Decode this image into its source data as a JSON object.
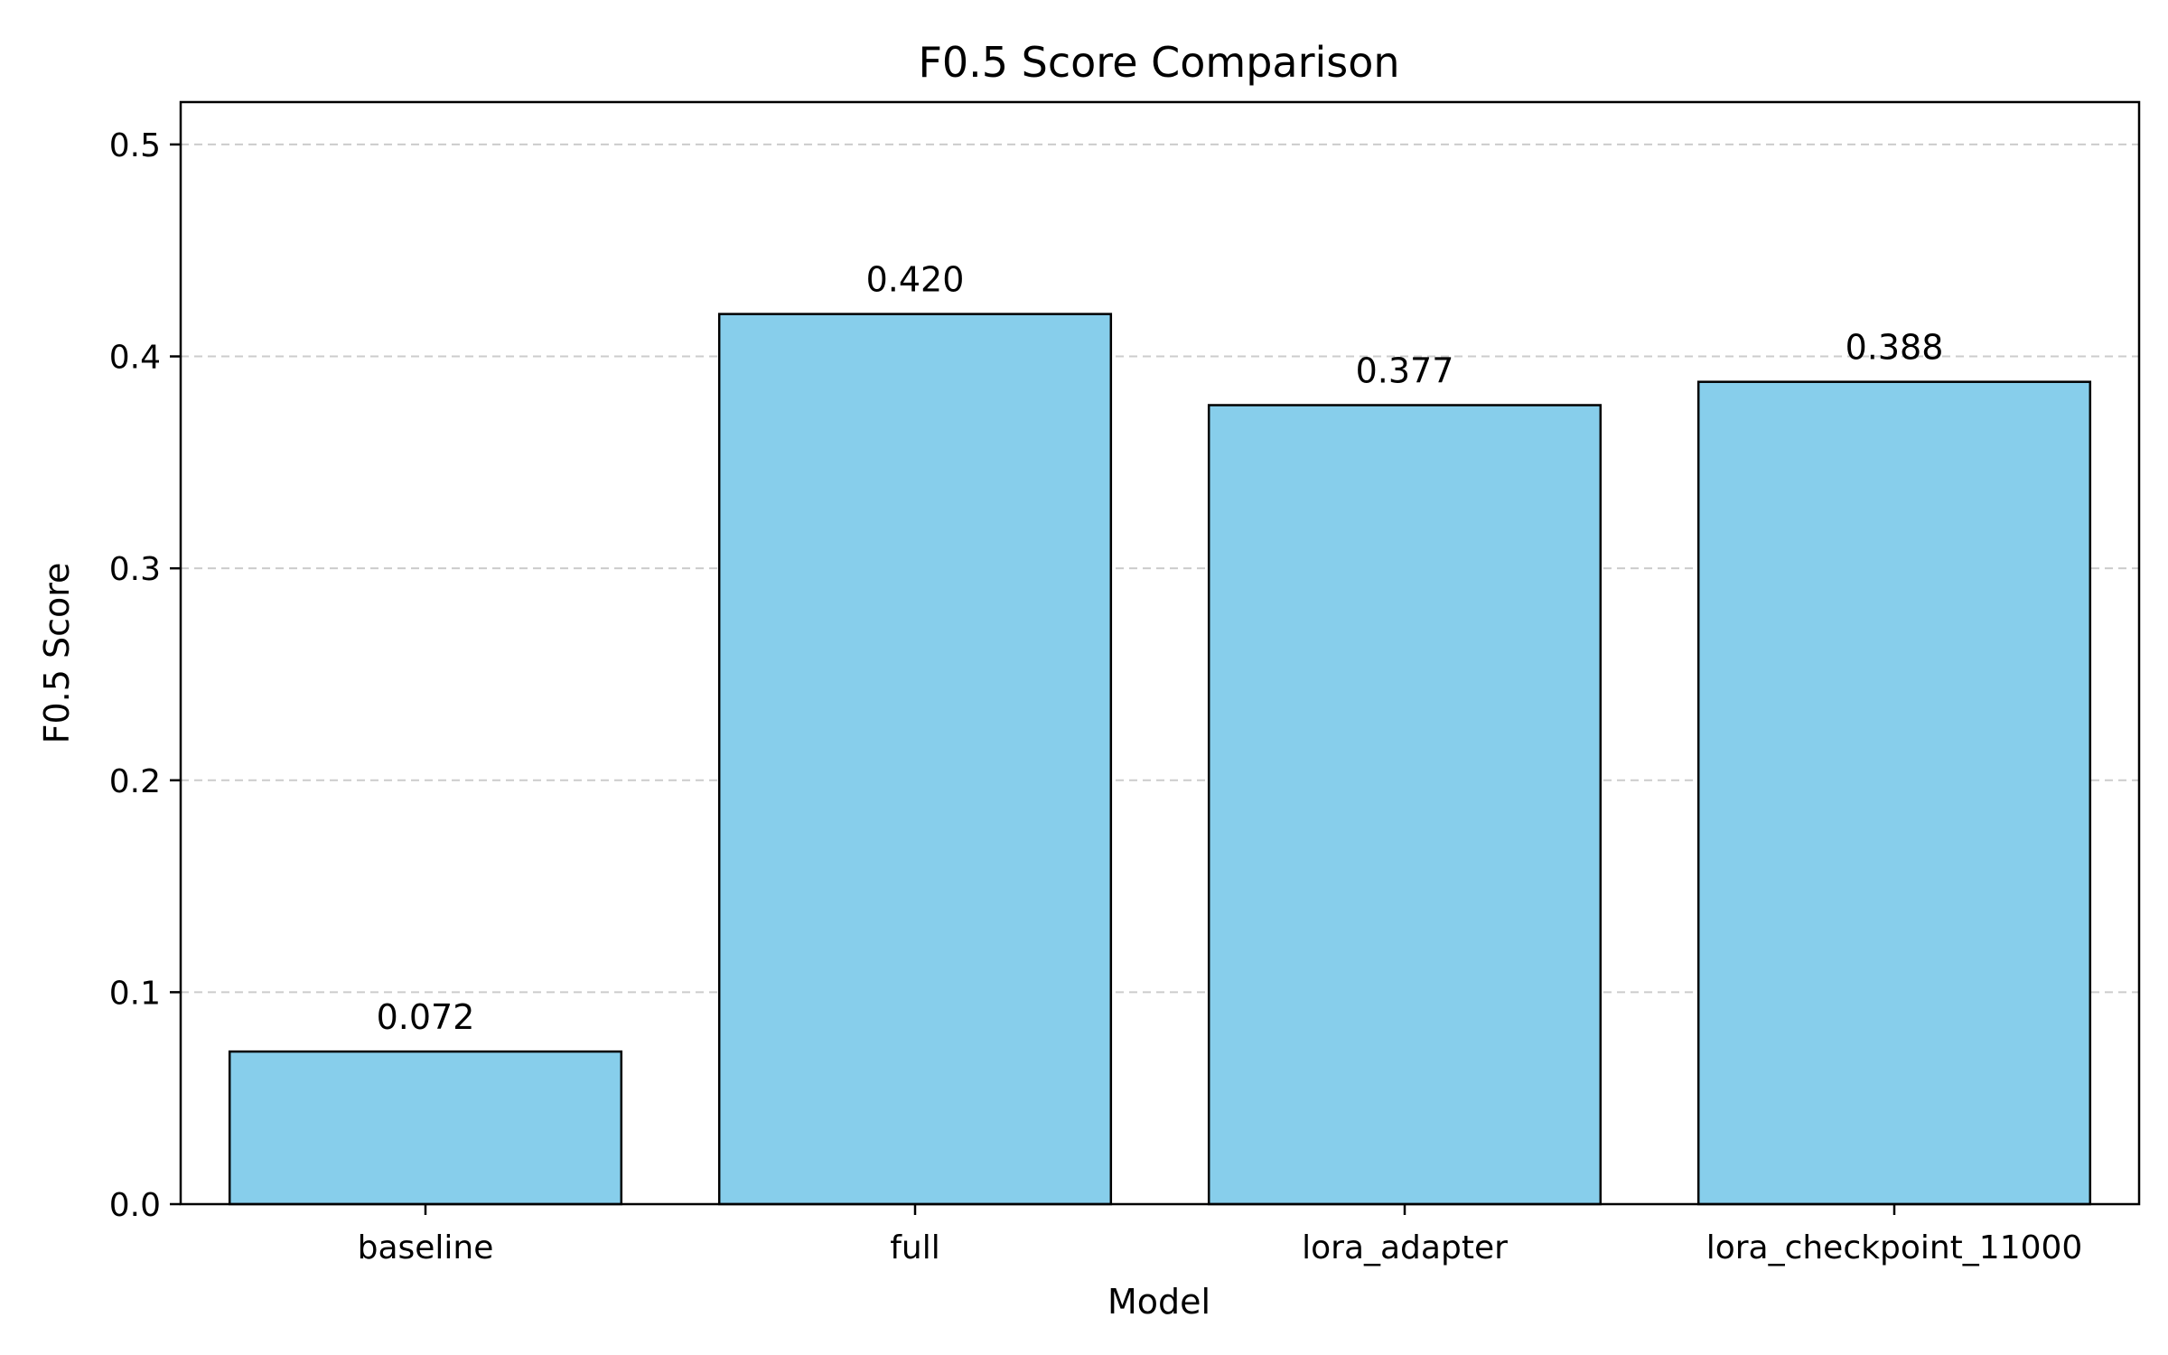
{
  "chart_data": {
    "type": "bar",
    "title": "F0.5 Score Comparison",
    "xlabel": "Model",
    "ylabel": "F0.5 Score",
    "categories": [
      "baseline",
      "full",
      "lora_adapter",
      "lora_checkpoint_11000"
    ],
    "values": [
      0.072,
      0.42,
      0.377,
      0.388
    ],
    "data_labels": [
      "0.072",
      "0.420",
      "0.377",
      "0.388"
    ],
    "ylim": [
      0,
      0.52
    ],
    "yticks": [
      0.0,
      0.1,
      0.2,
      0.3,
      0.4,
      0.5
    ],
    "ytick_labels": [
      "0.0",
      "0.1",
      "0.2",
      "0.3",
      "0.4",
      "0.5"
    ],
    "grid": {
      "y": true,
      "style": "dashed"
    },
    "legend": "none",
    "colors": {
      "bar_fill": "#87CEEB",
      "bar_edge": "#000000",
      "grid": "#cccccc"
    }
  }
}
